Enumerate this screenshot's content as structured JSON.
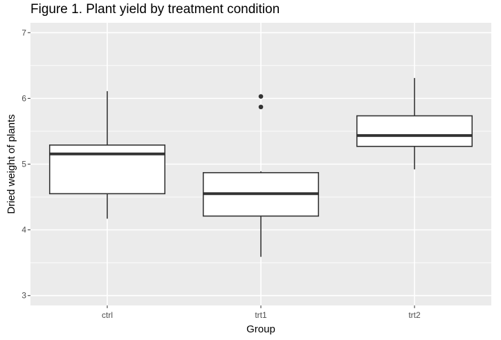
{
  "chart_data": {
    "type": "box",
    "title": "Figure 1. Plant yield by treatment condition",
    "xlabel": "Group",
    "ylabel": "Dried weight of plants",
    "categories": [
      "ctrl",
      "trt1",
      "trt2"
    ],
    "ylim": [
      2.85,
      7.15
    ],
    "yticks": [
      3,
      4,
      5,
      6,
      7
    ],
    "grid": true,
    "boxes": [
      {
        "category": "ctrl",
        "whisker_low": 4.17,
        "q1": 4.55,
        "median": 5.155,
        "q3": 5.29,
        "whisker_high": 6.11,
        "outliers": []
      },
      {
        "category": "trt1",
        "whisker_low": 3.59,
        "q1": 4.21,
        "median": 4.55,
        "q3": 4.87,
        "whisker_high": 4.89,
        "outliers": [
          5.87,
          6.03
        ]
      },
      {
        "category": "trt2",
        "whisker_low": 4.92,
        "q1": 5.27,
        "median": 5.435,
        "q3": 5.735,
        "whisker_high": 6.31,
        "outliers": []
      }
    ],
    "colors": {
      "panel_background": "#ebebeb",
      "grid": "#ffffff",
      "box_fill": "#ffffff",
      "box_stroke": "#333333",
      "tick_text": "#4d4d4d",
      "outlier": "#333333"
    }
  }
}
